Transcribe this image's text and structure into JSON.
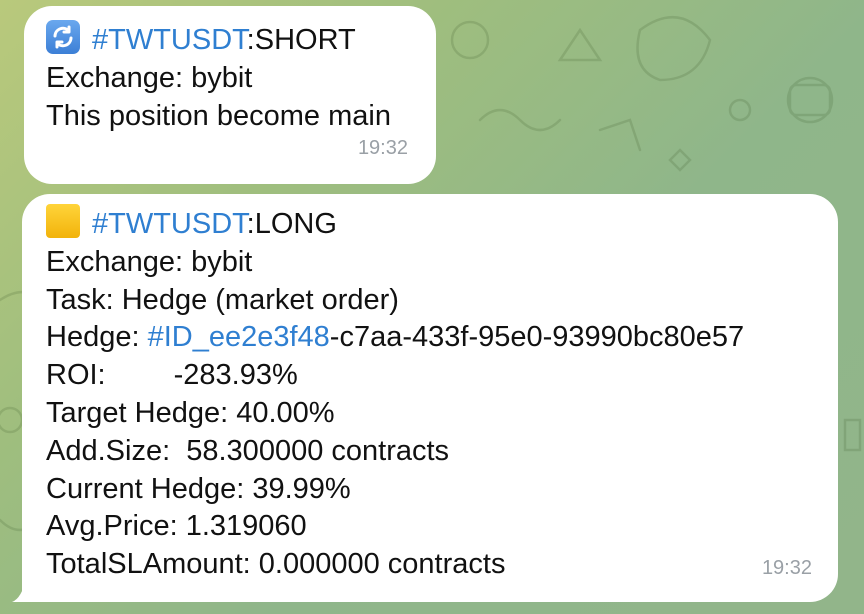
{
  "message_short": {
    "icon": "repeat-arrows-icon",
    "tag": "#TWTUSDT",
    "side": ":SHORT",
    "exchange_line": "Exchange: bybit",
    "status_line": "This position become main",
    "time": "19:32"
  },
  "message_long": {
    "icon": "yellow-square-icon",
    "tag": "#TWTUSDT",
    "side": ":LONG",
    "exchange_line": "Exchange: bybit",
    "task_line": "Task: Hedge (market order)",
    "hedge_label": "Hedge: ",
    "hedge_id_tag": "#ID_ee2e3f48",
    "hedge_id_rest": "-c7aa-433f-95e0-93990bc80e57",
    "roi_label": "ROI:",
    "roi_value": "-283.93%",
    "target_hedge_line": "Target Hedge: 40.00%",
    "add_size_line": "Add.Size:  58.300000 contracts",
    "current_hedge_line": "Current Hedge: 39.99%",
    "avg_price_line": "Avg.Price: 1.319060",
    "total_sl_line": "TotalSLAmount: 0.000000 contracts",
    "time": "19:32"
  },
  "colors": {
    "link": "#2f7fd1",
    "bubble": "#ffffff",
    "timestamp": "#9aa0a6"
  }
}
